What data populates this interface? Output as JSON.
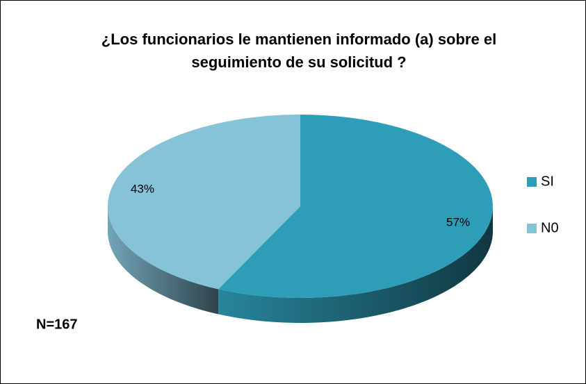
{
  "chart_data": {
    "type": "pie",
    "title": "¿Los funcionarios le mantienen informado (a) sobre el seguimiento de su solicitud ?",
    "categories": [
      "SI",
      "N0"
    ],
    "values": [
      57,
      43
    ],
    "value_labels": [
      "57%",
      "43%"
    ],
    "colors": [
      "#2e9db8",
      "#86c2d8"
    ],
    "annotation": "N=167",
    "legend": "right"
  }
}
